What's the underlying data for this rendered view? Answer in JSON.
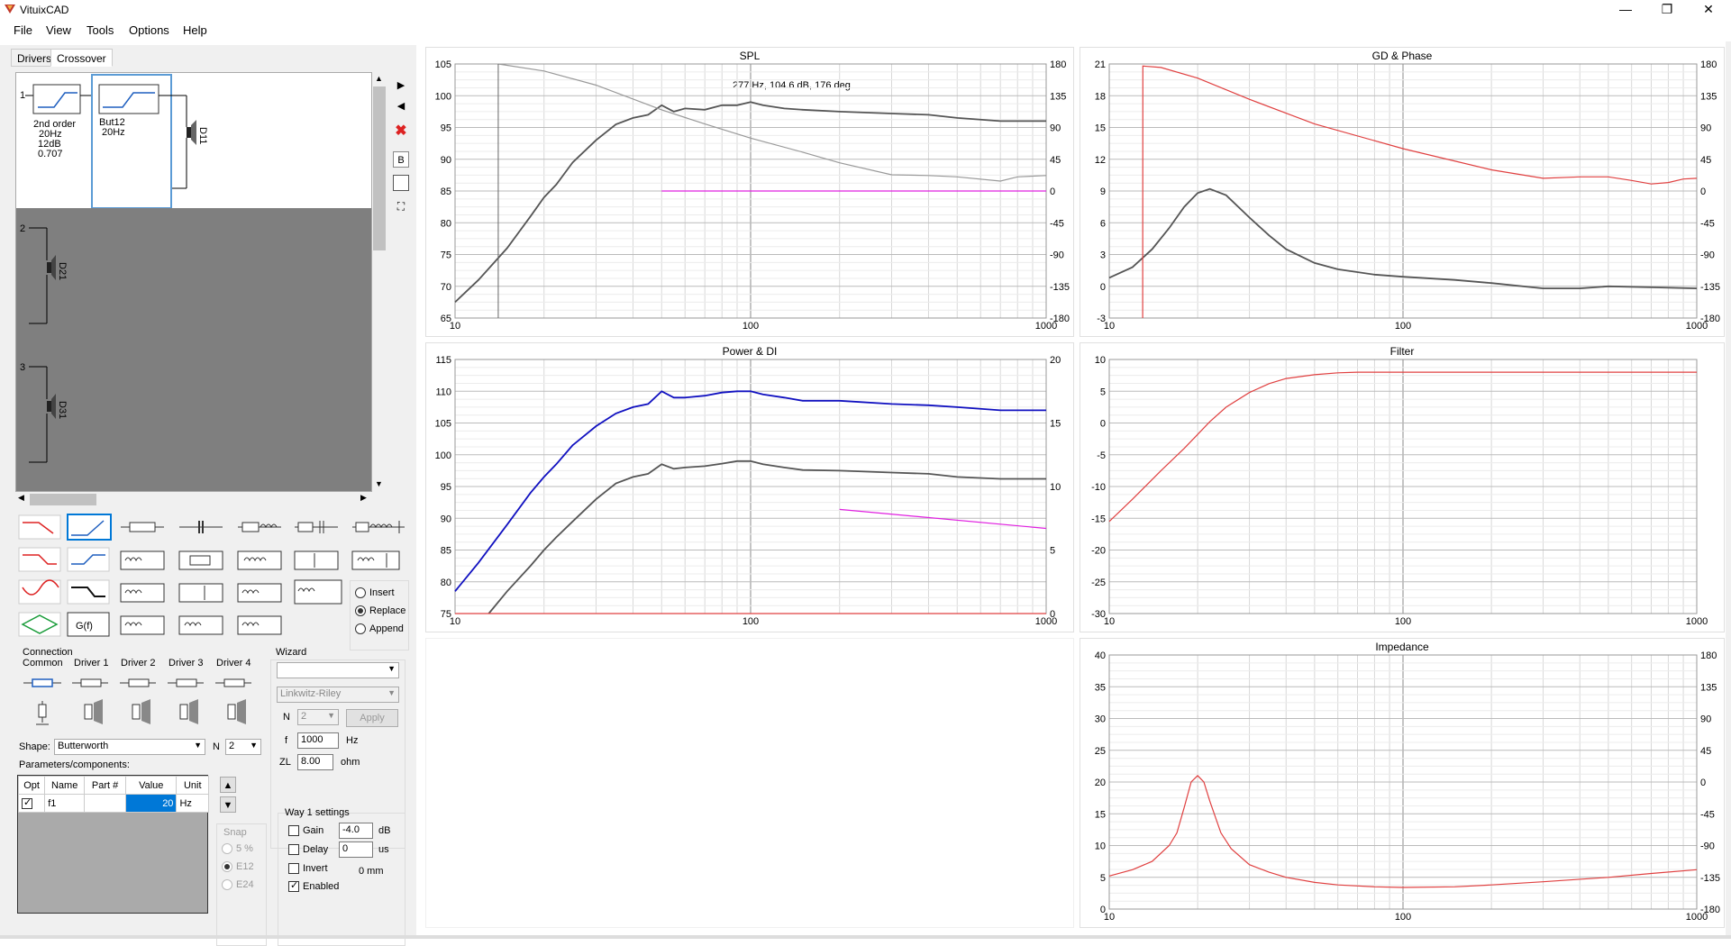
{
  "app": {
    "title": "VituixCAD"
  },
  "window_controls": {
    "minimize": "—",
    "maximize": "❐",
    "close": "✕"
  },
  "menu": [
    "File",
    "View",
    "Tools",
    "Options",
    "Help"
  ],
  "tabs": [
    "Drivers",
    "Crossover"
  ],
  "active_tab": "Crossover",
  "circuit": {
    "way1_num": "1",
    "way2_num": "2",
    "way3_num": "3",
    "block1": {
      "line1": "2nd order",
      "line2": "20Hz",
      "line3": "12dB",
      "line4": "0.707"
    },
    "block2": {
      "line1": "But12",
      "line2": "20Hz"
    },
    "driver1": "D11",
    "driver2": "D21",
    "driver3": "D31"
  },
  "side_tools": {
    "b_label": "B"
  },
  "insert_mode": {
    "options": [
      "Insert",
      "Replace",
      "Append"
    ],
    "selected": "Replace"
  },
  "gf_label": "G(f)",
  "connection": {
    "title": "Connection",
    "columns": [
      "Common",
      "Driver 1",
      "Driver 2",
      "Driver 3",
      "Driver 4"
    ]
  },
  "wizard": {
    "title": "Wizard",
    "type_value": "",
    "alignment": "Linkwitz-Riley",
    "n_label": "N",
    "n_value": "2",
    "apply": "Apply",
    "f_label": "f",
    "f_value": "1000",
    "f_unit": "Hz",
    "zl_label": "ZL",
    "zl_value": "8.00",
    "zl_unit": "ohm"
  },
  "shape": {
    "label": "Shape:",
    "value": "Butterworth",
    "n_label": "N",
    "n_value": "2"
  },
  "params": {
    "title": "Parameters/components:",
    "headers": [
      "Opt",
      "Name",
      "Part #",
      "Value",
      "Unit"
    ],
    "row": {
      "name": "f1",
      "part": "",
      "value": "20",
      "unit": "Hz"
    }
  },
  "snap": {
    "title": "Snap",
    "options": [
      "5 %",
      "E12",
      "E24"
    ],
    "selected": "E12"
  },
  "way_settings": {
    "title": "Way 1 settings",
    "gain_label": "Gain",
    "gain_value": "-4.0",
    "gain_unit": "dB",
    "delay_label": "Delay",
    "delay_value": "0",
    "delay_unit": "us",
    "invert_label": "Invert",
    "invert_mm": "0 mm",
    "enabled_label": "Enabled"
  },
  "colors": {
    "blue": "#1010c0",
    "red": "#e04040",
    "gray": "#555555",
    "magenta": "#e020e0",
    "lightgray": "#999999"
  },
  "chart_data": [
    {
      "title": "SPL",
      "type": "line",
      "xscale": "log",
      "xlim": [
        10,
        1000
      ],
      "ylim": [
        65,
        105
      ],
      "y2lim": [
        -180,
        180
      ],
      "annotation": "277 Hz, 104.6 dB, 176 deg",
      "x_ticks": [
        "10",
        "100",
        "1000"
      ],
      "y_ticks": [
        "105",
        "100",
        "95",
        "90",
        "85",
        "80",
        "75",
        "70",
        "65"
      ],
      "y2_ticks": [
        "180",
        "135",
        "90",
        "45",
        "0",
        "-45",
        "-90",
        "-135",
        "-180"
      ],
      "series": [
        {
          "axis": "left",
          "color": "gray",
          "x": [
            10,
            12,
            15,
            18,
            20,
            22,
            25,
            30,
            35,
            40,
            45,
            50,
            55,
            60,
            70,
            80,
            90,
            100,
            110,
            130,
            150,
            200,
            300,
            400,
            500,
            700,
            1000
          ],
          "y": [
            67.5,
            71,
            76,
            81,
            84,
            86,
            89.5,
            93,
            95.5,
            96.5,
            97,
            98.5,
            97.5,
            98,
            97.8,
            98.5,
            98.5,
            99,
            98.5,
            98,
            97.8,
            97.5,
            97.2,
            97,
            96.5,
            96,
            96
          ]
        },
        {
          "axis": "right",
          "color": "lightgray",
          "x": [
            14,
            20,
            30,
            50,
            70,
            100,
            150,
            200,
            300,
            400,
            500,
            700,
            800,
            1000
          ],
          "y": [
            180,
            170,
            150,
            115,
            95,
            75,
            55,
            40,
            23,
            22,
            20,
            14,
            20,
            22
          ]
        },
        {
          "axis": "right",
          "color": "magenta",
          "x": [
            50,
            1000
          ],
          "y": [
            0,
            0
          ]
        }
      ]
    },
    {
      "title": "GD & Phase",
      "type": "line",
      "xscale": "log",
      "xlim": [
        10,
        1000
      ],
      "ylim": [
        -3,
        21
      ],
      "y2lim": [
        -180,
        180
      ],
      "x_ticks": [
        "10",
        "100",
        "1000"
      ],
      "y_ticks": [
        "21",
        "18",
        "15",
        "12",
        "9",
        "6",
        "3",
        "0",
        "-3"
      ],
      "y2_ticks": [
        "180",
        "135",
        "90",
        "45",
        "0",
        "-45",
        "-90",
        "-135",
        "-180"
      ],
      "series": [
        {
          "axis": "left",
          "color": "gray",
          "x": [
            10,
            12,
            14,
            16,
            18,
            20,
            22,
            25,
            30,
            35,
            40,
            50,
            60,
            80,
            100,
            150,
            200,
            300,
            400,
            500,
            700,
            1000
          ],
          "y": [
            0.8,
            1.8,
            3.5,
            5.5,
            7.5,
            8.8,
            9.2,
            8.6,
            6.5,
            4.8,
            3.5,
            2.2,
            1.6,
            1.1,
            0.9,
            0.6,
            0.3,
            -0.2,
            -0.2,
            0.0,
            -0.1,
            -0.2
          ]
        },
        {
          "axis": "right",
          "color": "red",
          "x": [
            13,
            13.01,
            15,
            20,
            30,
            50,
            100,
            200,
            300,
            400,
            500,
            600,
            700,
            800,
            900,
            1000
          ],
          "y": [
            -180,
            177,
            175,
            160,
            130,
            95,
            60,
            30,
            18,
            20,
            20,
            15,
            10,
            12,
            17,
            18
          ]
        }
      ]
    },
    {
      "title": "Power & DI",
      "type": "line",
      "xscale": "log",
      "xlim": [
        10,
        1000
      ],
      "ylim": [
        75,
        115
      ],
      "y2lim": [
        0,
        20
      ],
      "x_ticks": [
        "10",
        "100",
        "1000"
      ],
      "y_ticks": [
        "115",
        "110",
        "105",
        "100",
        "95",
        "90",
        "85",
        "80",
        "75"
      ],
      "y2_ticks": [
        "20",
        "15",
        "10",
        "5",
        "0"
      ],
      "series": [
        {
          "axis": "left",
          "color": "blue",
          "x": [
            10,
            12,
            15,
            18,
            20,
            22,
            25,
            30,
            35,
            40,
            45,
            50,
            55,
            60,
            70,
            80,
            90,
            100,
            110,
            130,
            150,
            200,
            300,
            400,
            500,
            700,
            1000
          ],
          "y": [
            78.5,
            83,
            89,
            94,
            96.5,
            98.5,
            101.5,
            104.5,
            106.5,
            107.5,
            108,
            110,
            109,
            109,
            109.3,
            109.8,
            110,
            110,
            109.5,
            109,
            108.5,
            108.5,
            108,
            107.8,
            107.5,
            107,
            107
          ]
        },
        {
          "axis": "left",
          "color": "gray",
          "x": [
            13,
            15,
            18,
            20,
            22,
            25,
            30,
            35,
            40,
            45,
            50,
            55,
            60,
            70,
            80,
            90,
            100,
            110,
            130,
            150,
            200,
            300,
            400,
            500,
            700,
            1000
          ],
          "y": [
            75,
            78.5,
            82.5,
            85,
            87,
            89.5,
            93,
            95.5,
            96.5,
            97,
            98.5,
            97.8,
            98,
            98.2,
            98.6,
            99,
            99,
            98.5,
            98,
            97.6,
            97.5,
            97.2,
            97,
            96.5,
            96.2,
            96.2
          ]
        },
        {
          "axis": "right",
          "color": "magenta",
          "x": [
            200,
            1000
          ],
          "y": [
            8.2,
            6.7
          ]
        },
        {
          "axis": "right",
          "color": "red",
          "x": [
            10,
            1000
          ],
          "y": [
            0,
            0
          ]
        }
      ]
    },
    {
      "title": "Filter",
      "type": "line",
      "xscale": "log",
      "xlim": [
        10,
        1000
      ],
      "ylim": [
        -30,
        10
      ],
      "x_ticks": [
        "10",
        "100",
        "1000"
      ],
      "y_ticks": [
        "10",
        "5",
        "0",
        "-5",
        "-10",
        "-15",
        "-20",
        "-25",
        "-30"
      ],
      "series": [
        {
          "axis": "left",
          "color": "red",
          "x": [
            10,
            12,
            15,
            18,
            20,
            22,
            25,
            30,
            35,
            40,
            50,
            60,
            70,
            100,
            200,
            1000
          ],
          "y": [
            -15.5,
            -12,
            -7.5,
            -4,
            -1.8,
            0.2,
            2.5,
            4.8,
            6.2,
            7,
            7.6,
            7.9,
            8,
            8,
            8,
            8
          ]
        }
      ]
    },
    {
      "title": "Impedance",
      "type": "line",
      "xscale": "log",
      "xlim": [
        10,
        1000
      ],
      "ylim": [
        0,
        40
      ],
      "y2lim": [
        -180,
        180
      ],
      "x_ticks": [
        "10",
        "100",
        "1000"
      ],
      "y_ticks": [
        "40",
        "35",
        "30",
        "25",
        "20",
        "15",
        "10",
        "5",
        "0"
      ],
      "y2_ticks": [
        "180",
        "135",
        "90",
        "45",
        "0",
        "-45",
        "-90",
        "-135",
        "-180"
      ],
      "series": [
        {
          "axis": "left",
          "color": "red",
          "x": [
            10,
            12,
            14,
            16,
            17,
            18,
            19,
            20,
            21,
            22,
            24,
            26,
            30,
            35,
            40,
            50,
            60,
            80,
            100,
            150,
            200,
            300,
            500,
            700,
            1000
          ],
          "y": [
            5.2,
            6.2,
            7.5,
            10,
            12,
            16,
            20,
            21,
            20,
            17,
            12,
            9.5,
            7,
            5.8,
            5,
            4.2,
            3.8,
            3.5,
            3.4,
            3.5,
            3.8,
            4.3,
            5,
            5.6,
            6.2
          ]
        }
      ]
    }
  ]
}
